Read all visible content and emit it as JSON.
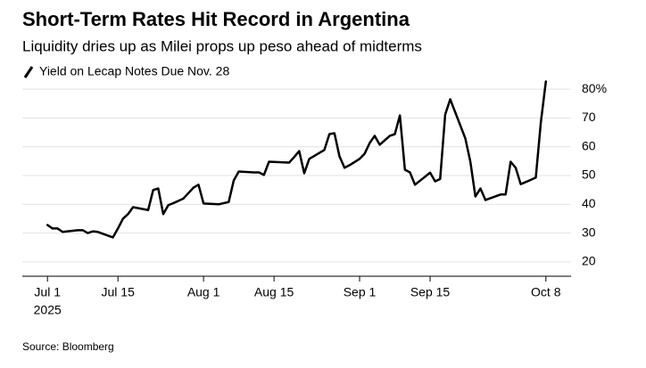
{
  "chart_data": {
    "type": "line",
    "title": "Short-Term Rates Hit Record in Argentina",
    "subtitle": "Liquidity dries up as Milei props up peso ahead of midterms",
    "source": "Source: Bloomberg",
    "x_year_label": "2025",
    "x": [
      "2025-07-01",
      "2025-07-02",
      "2025-07-03",
      "2025-07-04",
      "2025-07-07",
      "2025-07-08",
      "2025-07-09",
      "2025-07-10",
      "2025-07-11",
      "2025-07-14",
      "2025-07-15",
      "2025-07-16",
      "2025-07-17",
      "2025-07-18",
      "2025-07-21",
      "2025-07-22",
      "2025-07-23",
      "2025-07-24",
      "2025-07-25",
      "2025-07-26",
      "2025-07-28",
      "2025-07-30",
      "2025-07-31",
      "2025-08-01",
      "2025-08-04",
      "2025-08-06",
      "2025-08-07",
      "2025-08-08",
      "2025-08-11",
      "2025-08-12",
      "2025-08-13",
      "2025-08-14",
      "2025-08-18",
      "2025-08-19",
      "2025-08-20",
      "2025-08-21",
      "2025-08-22",
      "2025-08-25",
      "2025-08-26",
      "2025-08-27",
      "2025-08-28",
      "2025-08-29",
      "2025-08-30",
      "2025-09-01",
      "2025-09-02",
      "2025-09-03",
      "2025-09-04",
      "2025-09-05",
      "2025-09-07",
      "2025-09-08",
      "2025-09-09",
      "2025-09-10",
      "2025-09-11",
      "2025-09-12",
      "2025-09-14",
      "2025-09-15",
      "2025-09-16",
      "2025-09-17",
      "2025-09-18",
      "2025-09-19",
      "2025-09-22",
      "2025-09-23",
      "2025-09-24",
      "2025-09-25",
      "2025-09-26",
      "2025-09-29",
      "2025-09-30",
      "2025-10-01",
      "2025-10-02",
      "2025-10-03",
      "2025-10-05",
      "2025-10-06",
      "2025-10-07",
      "2025-10-08"
    ],
    "series": [
      {
        "name": "Yield on Lecap Notes Due Nov. 28",
        "color": "#000000",
        "values": [
          32.8,
          31.6,
          31.6,
          30.4,
          31,
          31,
          30,
          30.6,
          30.4,
          28.5,
          31.6,
          35,
          36.6,
          39,
          38,
          45,
          45.5,
          36.6,
          39.7,
          40.4,
          42,
          45.8,
          46.8,
          40.3,
          40,
          40.8,
          48.3,
          51.4,
          51.1,
          51.1,
          50.2,
          54.8,
          54.5,
          56.4,
          58.5,
          50.8,
          55.8,
          58.9,
          64.4,
          64.7,
          56.7,
          52.7,
          53.6,
          55.8,
          57.6,
          61.3,
          63.8,
          60.7,
          63.8,
          64.4,
          70.9,
          52,
          51.1,
          46.8,
          49.6,
          51,
          48,
          48.8,
          71.2,
          76.5,
          62.9,
          54.8,
          42.7,
          45.5,
          41.5,
          43.4,
          43.4,
          54.8,
          52.7,
          47,
          48.5,
          49.3,
          68.5,
          82.7
        ]
      }
    ],
    "xlim": [
      "2025-06-26",
      "2025-10-13"
    ],
    "xticks": [
      {
        "value": "2025-07-01",
        "label": "Jul 1"
      },
      {
        "value": "2025-07-15",
        "label": "Jul 15"
      },
      {
        "value": "2025-08-01",
        "label": "Aug 1"
      },
      {
        "value": "2025-08-15",
        "label": "Aug 15"
      },
      {
        "value": "2025-09-01",
        "label": "Sep 1"
      },
      {
        "value": "2025-09-15",
        "label": "Sep 15"
      },
      {
        "value": "2025-10-08",
        "label": "Oct 8"
      }
    ],
    "ylim": [
      15,
      85
    ],
    "yticks": [
      20,
      30,
      40,
      50,
      60,
      {
        "value": 70,
        "label": "70"
      },
      {
        "value": 80,
        "label": "80%"
      }
    ],
    "grid": true
  }
}
